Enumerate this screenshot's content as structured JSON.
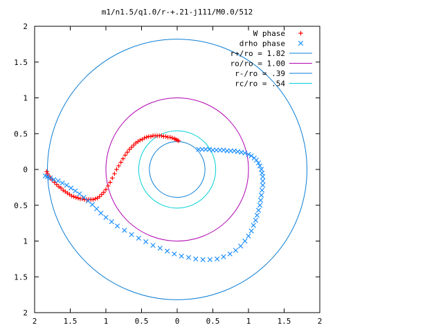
{
  "chart_data": {
    "type": "scatter",
    "title": "m1/n1.5/q1.0/r-+.21-j111/M0.0/512",
    "xlim": [
      -2,
      2
    ],
    "ylim": [
      -2,
      2
    ],
    "x_ticks": [
      -2,
      -1.5,
      -1,
      -0.5,
      0,
      0.5,
      1,
      1.5,
      2
    ],
    "y_ticks": [
      -2,
      -1.5,
      -1,
      -0.5,
      0,
      0.5,
      1,
      1.5,
      2
    ],
    "x_tick_labels": [
      "2",
      "1.5",
      "1",
      "0.5",
      "0",
      "0.5",
      "1",
      "1.5",
      "2"
    ],
    "y_tick_labels": [
      "2",
      "1.5",
      "1",
      "0.5",
      "0",
      "0.5",
      "1",
      "1.5",
      "2"
    ],
    "grid": false,
    "legend_position": "top-right",
    "series": [
      {
        "name": "W phase",
        "marker": "plus",
        "color": "#ff0000",
        "x": [
          -1.83,
          -1.82,
          -1.8,
          -1.78,
          -1.75,
          -1.72,
          -1.69,
          -1.66,
          -1.63,
          -1.6,
          -1.57,
          -1.54,
          -1.51,
          -1.48,
          -1.45,
          -1.42,
          -1.39,
          -1.36,
          -1.33,
          -1.3,
          -1.27,
          -1.24,
          -1.21,
          -1.18,
          -1.15,
          -1.12,
          -1.09,
          -1.06,
          -1.03,
          -1.0,
          -0.97,
          -0.94,
          -0.91,
          -0.88,
          -0.85,
          -0.82,
          -0.79,
          -0.76,
          -0.73,
          -0.7,
          -0.67,
          -0.64,
          -0.61,
          -0.58,
          -0.55,
          -0.52,
          -0.49,
          -0.46,
          -0.43,
          -0.4,
          -0.37,
          -0.34,
          -0.31,
          -0.28,
          -0.25,
          -0.22,
          -0.19,
          -0.16,
          -0.13,
          -0.1,
          -0.07,
          -0.04,
          -0.02,
          0.0,
          0.02
        ],
        "y": [
          -0.03,
          -0.06,
          -0.09,
          -0.12,
          -0.15,
          -0.18,
          -0.21,
          -0.24,
          -0.26,
          -0.29,
          -0.31,
          -0.33,
          -0.35,
          -0.37,
          -0.38,
          -0.39,
          -0.4,
          -0.41,
          -0.41,
          -0.42,
          -0.42,
          -0.42,
          -0.42,
          -0.42,
          -0.41,
          -0.4,
          -0.38,
          -0.35,
          -0.32,
          -0.28,
          -0.23,
          -0.18,
          -0.12,
          -0.06,
          -0.0,
          0.05,
          0.1,
          0.15,
          0.2,
          0.24,
          0.28,
          0.31,
          0.34,
          0.37,
          0.39,
          0.41,
          0.42,
          0.44,
          0.45,
          0.46,
          0.46,
          0.47,
          0.47,
          0.47,
          0.47,
          0.47,
          0.46,
          0.46,
          0.45,
          0.45,
          0.44,
          0.43,
          0.42,
          0.41,
          0.4
        ]
      },
      {
        "name": "drho phase",
        "marker": "cross",
        "color": "#1e90ff",
        "x": [
          0.3,
          0.35,
          0.4,
          0.45,
          0.5,
          0.55,
          0.6,
          0.65,
          0.7,
          0.75,
          0.8,
          0.85,
          0.9,
          0.95,
          1.0,
          1.04,
          1.08,
          1.11,
          1.14,
          1.16,
          1.18,
          1.19,
          1.2,
          1.2,
          1.2,
          1.19,
          1.18,
          1.17,
          1.16,
          1.14,
          1.12,
          1.1,
          1.07,
          1.04,
          1.0,
          0.95,
          0.89,
          0.82,
          0.74,
          0.65,
          0.56,
          0.46,
          0.36,
          0.26,
          0.16,
          0.06,
          -0.04,
          -0.14,
          -0.24,
          -0.34,
          -0.44,
          -0.54,
          -0.64,
          -0.74,
          -0.84,
          -0.92,
          -1.0,
          -1.07,
          -1.13,
          -1.19,
          -1.25,
          -1.31,
          -1.37,
          -1.43,
          -1.49,
          -1.55,
          -1.61,
          -1.67,
          -1.73,
          -1.78,
          -1.82,
          -1.85
        ],
        "y": [
          0.28,
          0.28,
          0.28,
          0.28,
          0.27,
          0.27,
          0.27,
          0.27,
          0.26,
          0.26,
          0.26,
          0.25,
          0.24,
          0.23,
          0.21,
          0.19,
          0.16,
          0.13,
          0.09,
          0.05,
          0.0,
          -0.05,
          -0.1,
          -0.16,
          -0.22,
          -0.29,
          -0.36,
          -0.43,
          -0.5,
          -0.57,
          -0.64,
          -0.71,
          -0.78,
          -0.86,
          -0.93,
          -1.0,
          -1.07,
          -1.13,
          -1.18,
          -1.22,
          -1.25,
          -1.26,
          -1.26,
          -1.25,
          -1.23,
          -1.21,
          -1.18,
          -1.14,
          -1.1,
          -1.06,
          -1.01,
          -0.96,
          -0.91,
          -0.85,
          -0.79,
          -0.73,
          -0.67,
          -0.61,
          -0.55,
          -0.49,
          -0.44,
          -0.39,
          -0.34,
          -0.3,
          -0.26,
          -0.22,
          -0.19,
          -0.16,
          -0.14,
          -0.12,
          -0.1,
          -0.09
        ]
      },
      {
        "name": "r+/ro = 1.82",
        "type": "circle",
        "radius": 1.82,
        "color": "#0a7dd4"
      },
      {
        "name": "ro/ro = 1.00",
        "type": "circle",
        "radius": 1.0,
        "color": "#b000b0"
      },
      {
        "name": "r-/ro = .39",
        "type": "circle",
        "radius": 0.39,
        "color": "#0a7dd4"
      },
      {
        "name": "rc/ro = .54",
        "type": "circle",
        "radius": 0.54,
        "color": "#00d0d8"
      }
    ]
  }
}
